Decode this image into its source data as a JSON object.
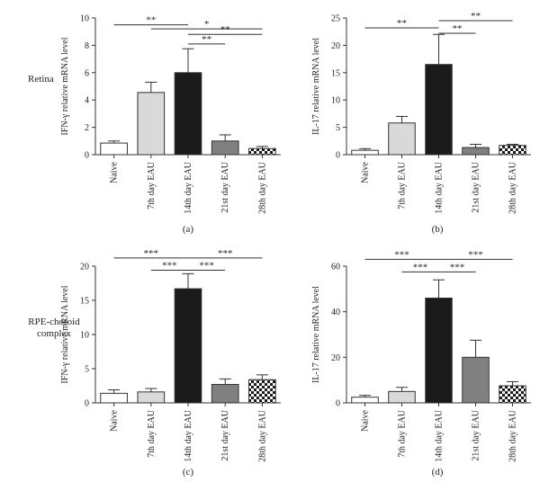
{
  "row_labels": {
    "retina": "Retina",
    "rpe_line1": "RPE-choroid",
    "rpe_line2": "complex"
  },
  "colors": {
    "bar_fills": [
      "#ffffff",
      "#d9d9d9",
      "#1a1a1a",
      "#808080",
      "checker"
    ],
    "stroke": "#333333"
  },
  "chart_data": [
    {
      "type": "bar",
      "panel_label": "(a)",
      "categories": [
        "Naive",
        "7th day EAU",
        "14th day EAU",
        "21st day EAU",
        "28th day EAU"
      ],
      "values": [
        0.85,
        4.55,
        6.0,
        1.0,
        0.45
      ],
      "errors": [
        0.15,
        0.75,
        1.75,
        0.45,
        0.15
      ],
      "ylabel": "IFN-γ relative mRNA level",
      "ylim": [
        0,
        10
      ],
      "yticks": [
        0,
        2,
        4,
        6,
        8,
        10
      ],
      "significance": [
        {
          "from": 0,
          "to": 2,
          "label": "**",
          "y": 9.5
        },
        {
          "from": 1,
          "to": 4,
          "label": "*",
          "y": 9.2
        },
        {
          "from": 2,
          "to": 4,
          "label": "**",
          "y": 8.8
        },
        {
          "from": 2,
          "to": 3,
          "label": "**",
          "y": 8.1
        }
      ]
    },
    {
      "type": "bar",
      "panel_label": "(b)",
      "categories": [
        "Naive",
        "7th day EAU",
        "14th day EAU",
        "21st day EAU",
        "28th day EAU"
      ],
      "values": [
        0.8,
        5.8,
        16.5,
        1.3,
        1.7
      ],
      "errors": [
        0.3,
        1.2,
        5.5,
        0.6,
        0.2
      ],
      "ylabel": "IL-17 relative mRNA level",
      "ylim": [
        0,
        25
      ],
      "yticks": [
        0,
        5,
        10,
        15,
        20,
        25
      ],
      "significance": [
        {
          "from": 0,
          "to": 2,
          "label": "**",
          "y": 23.2
        },
        {
          "from": 2,
          "to": 4,
          "label": "**",
          "y": 24.5
        },
        {
          "from": 2,
          "to": 3,
          "label": "**",
          "y": 22.2
        }
      ]
    },
    {
      "type": "bar",
      "panel_label": "(c)",
      "categories": [
        "Naive",
        "7th day EAU",
        "14th day EAU",
        "21st day EAU",
        "28th day EAU"
      ],
      "values": [
        1.4,
        1.6,
        16.7,
        2.7,
        3.4
      ],
      "errors": [
        0.5,
        0.5,
        2.2,
        0.8,
        0.7
      ],
      "ylabel": "IFN-γ relative mRNA level",
      "ylim": [
        0,
        20
      ],
      "yticks": [
        0,
        5,
        10,
        15,
        20
      ],
      "significance": [
        {
          "from": 0,
          "to": 2,
          "label": "***",
          "y": 21.2
        },
        {
          "from": 2,
          "to": 4,
          "label": "***",
          "y": 21.2
        },
        {
          "from": 1,
          "to": 2,
          "label": "***",
          "y": 19.4
        },
        {
          "from": 2,
          "to": 3,
          "label": "***",
          "y": 19.4
        }
      ]
    },
    {
      "type": "bar",
      "panel_label": "(d)",
      "categories": [
        "Naive",
        "7th day EAU",
        "14th day EAU",
        "21st day EAU",
        "28th day EAU"
      ],
      "values": [
        2.5,
        5.0,
        46.0,
        20.0,
        7.5
      ],
      "errors": [
        0.8,
        1.8,
        8.0,
        7.5,
        1.8
      ],
      "ylabel": "IL-17 relative mRNA level",
      "ylim": [
        0,
        60
      ],
      "yticks": [
        0,
        20,
        40,
        60
      ],
      "significance": [
        {
          "from": 0,
          "to": 2,
          "label": "***",
          "y": 63.0
        },
        {
          "from": 2,
          "to": 4,
          "label": "***",
          "y": 63.0
        },
        {
          "from": 1,
          "to": 2,
          "label": "***",
          "y": 57.5
        },
        {
          "from": 2,
          "to": 3,
          "label": "***",
          "y": 57.5
        }
      ]
    }
  ]
}
